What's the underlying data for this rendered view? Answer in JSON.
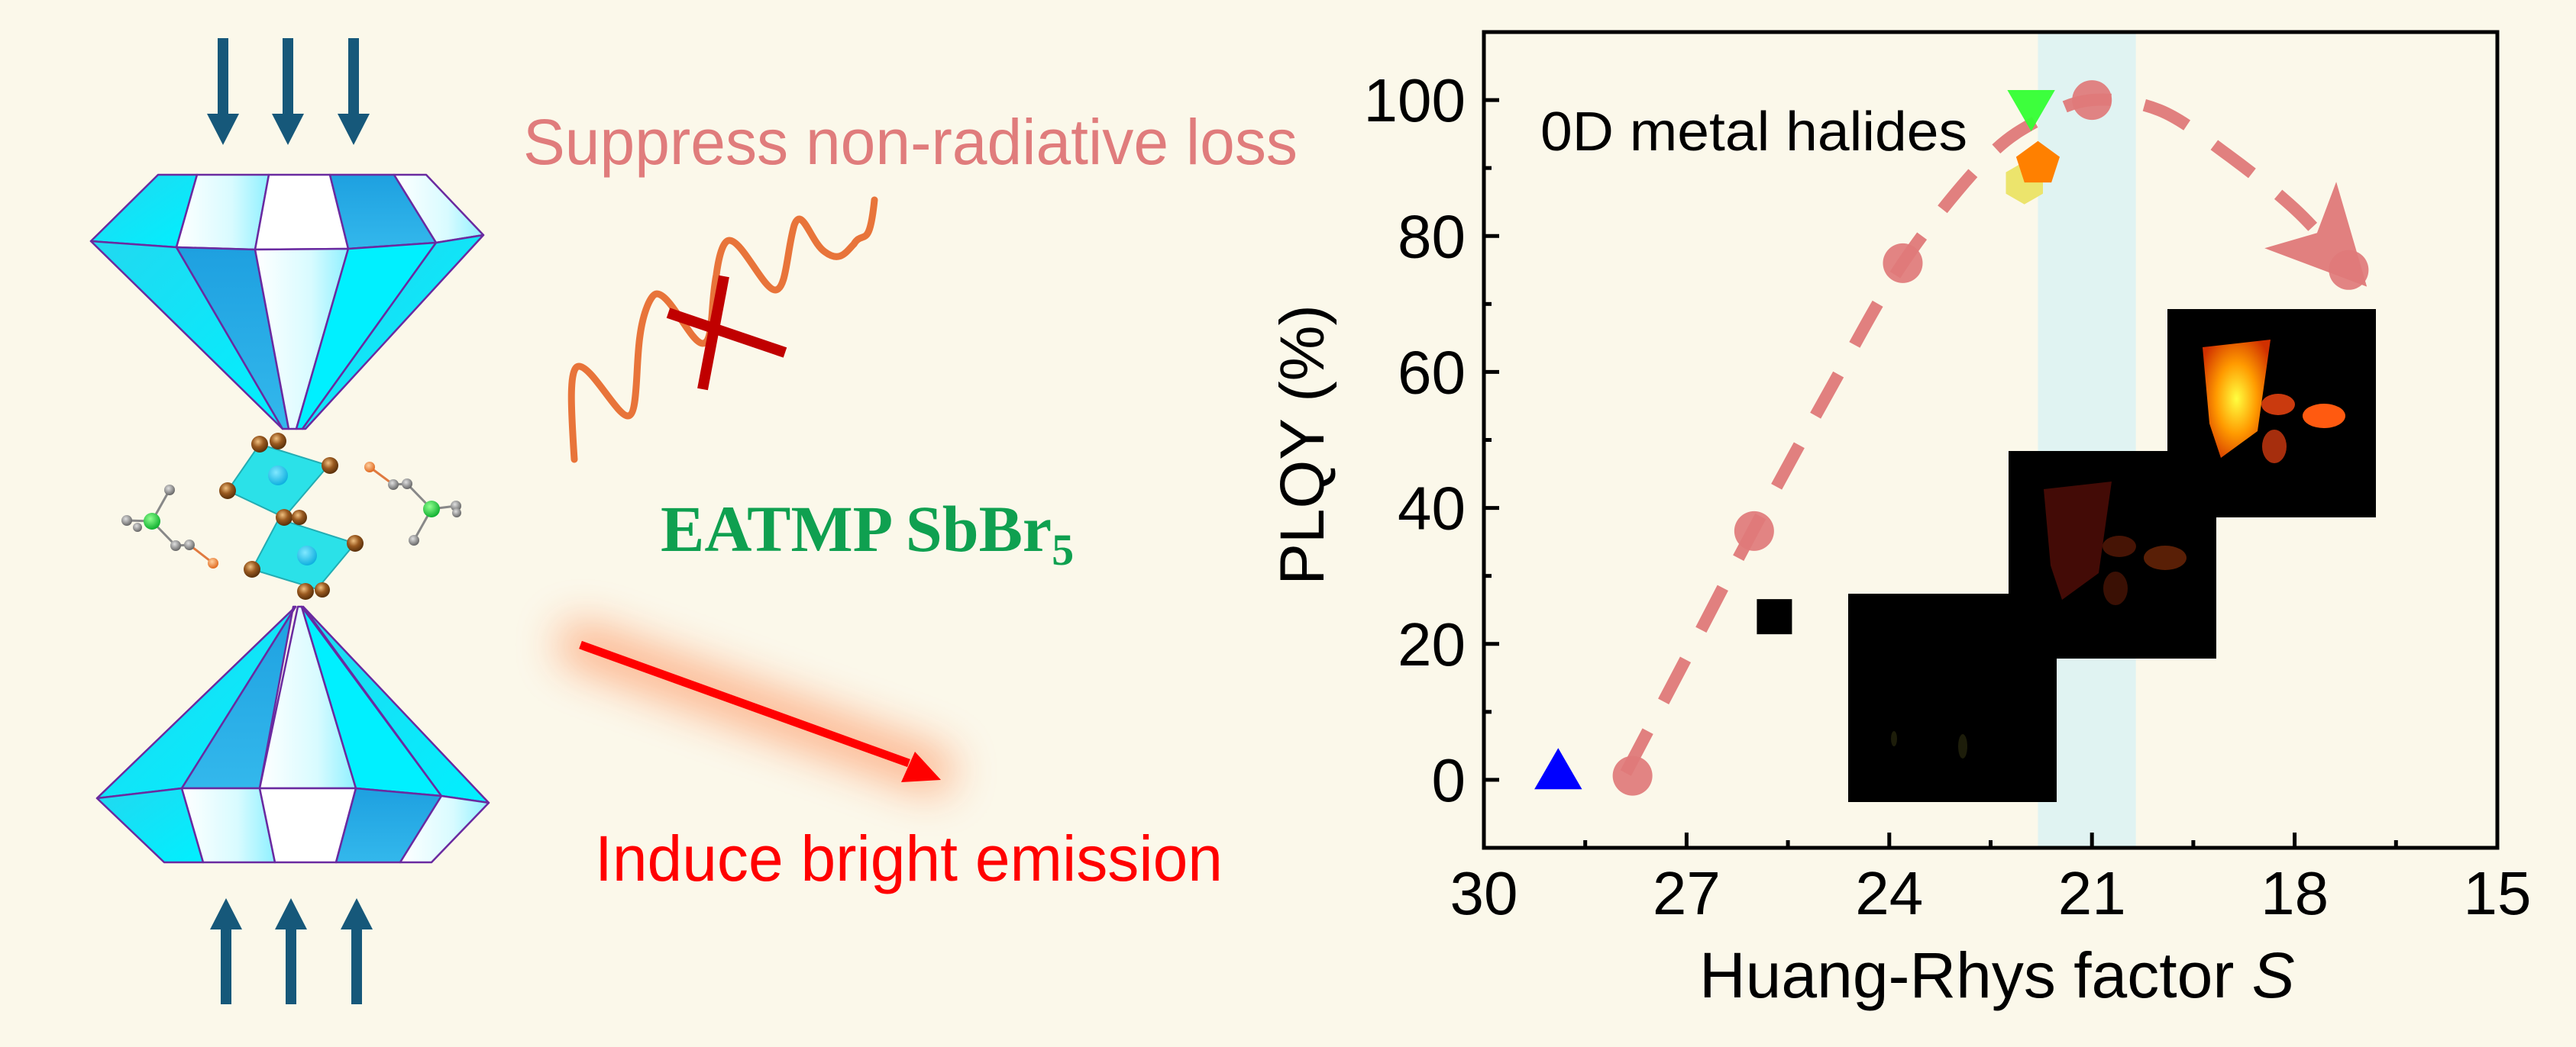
{
  "illustration": {
    "suppress_label": "Suppress non-radiative loss",
    "compound_label_main": "EATMP SbBr",
    "compound_label_sub": "5",
    "emission_label": "Induce bright emission",
    "colors": {
      "background": "#fbf8ea",
      "pressure_arrow": "#16587a",
      "suppress_text": "#e07c7c",
      "wave": "#e8743a",
      "cross": "#c00000",
      "compound_text": "#0fa050",
      "emission_arrow": "#ff0000",
      "emission_glow": "#fdb088"
    }
  },
  "chart_data": {
    "type": "scatter",
    "title": "",
    "annotation": "0D metal halides",
    "xlabel": "Huang-Rhys factor",
    "xlabel_italic": "S",
    "ylabel": "PLQY (%)",
    "xlim": [
      30,
      15
    ],
    "ylim": [
      -10,
      110
    ],
    "x_reversed": true,
    "xticks": [
      30,
      27,
      24,
      21,
      18,
      15
    ],
    "yticks": [
      0,
      20,
      40,
      60,
      80,
      100
    ],
    "grid": false,
    "highlight_band": {
      "x_from": 21.8,
      "x_to": 20.35,
      "color": "#e0f3f2"
    },
    "series": [
      {
        "name": "EATMP SbBr5 (pressure)",
        "marker": "circle",
        "color": "#e07a7a",
        "points": [
          [
            27.8,
            0.6
          ],
          [
            26.0,
            36.6
          ],
          [
            23.8,
            76
          ],
          [
            21.0,
            100
          ],
          [
            17.2,
            75
          ]
        ]
      },
      {
        "name": "ref-triangle-up",
        "marker": "triangle-up",
        "color": "#0000ff",
        "points": [
          [
            28.9,
            1.3
          ]
        ]
      },
      {
        "name": "ref-square",
        "marker": "square",
        "color": "#000000",
        "points": [
          [
            25.7,
            24
          ]
        ]
      },
      {
        "name": "ref-triangle-down",
        "marker": "triangle-down",
        "color": "#33ff33",
        "points": [
          [
            21.9,
            99
          ]
        ]
      },
      {
        "name": "ref-pentagon",
        "marker": "pentagon",
        "color": "#ff8000",
        "points": [
          [
            21.8,
            90.6
          ]
        ]
      },
      {
        "name": "ref-hexagon",
        "marker": "hexagon",
        "color": "#ece46c",
        "points": [
          [
            22.0,
            87.8
          ]
        ]
      }
    ],
    "trend_curve": {
      "style": "dashed-arrow",
      "color": "#e07a7a",
      "points": [
        [
          27.9,
          1
        ],
        [
          27.0,
          18
        ],
        [
          26.0,
          37
        ],
        [
          24.9,
          57
        ],
        [
          23.8,
          76
        ],
        [
          22.6,
          91
        ],
        [
          21.8,
          97
        ],
        [
          21.0,
          100
        ],
        [
          20.0,
          98.5
        ],
        [
          19.0,
          92
        ],
        [
          18.0,
          84
        ],
        [
          17.3,
          76.5
        ]
      ]
    },
    "insets": [
      {
        "name": "emission-photo-low",
        "brightness": 0.05
      },
      {
        "name": "emission-photo-mid",
        "brightness": 0.35
      },
      {
        "name": "emission-photo-high",
        "brightness": 1.0
      }
    ]
  }
}
